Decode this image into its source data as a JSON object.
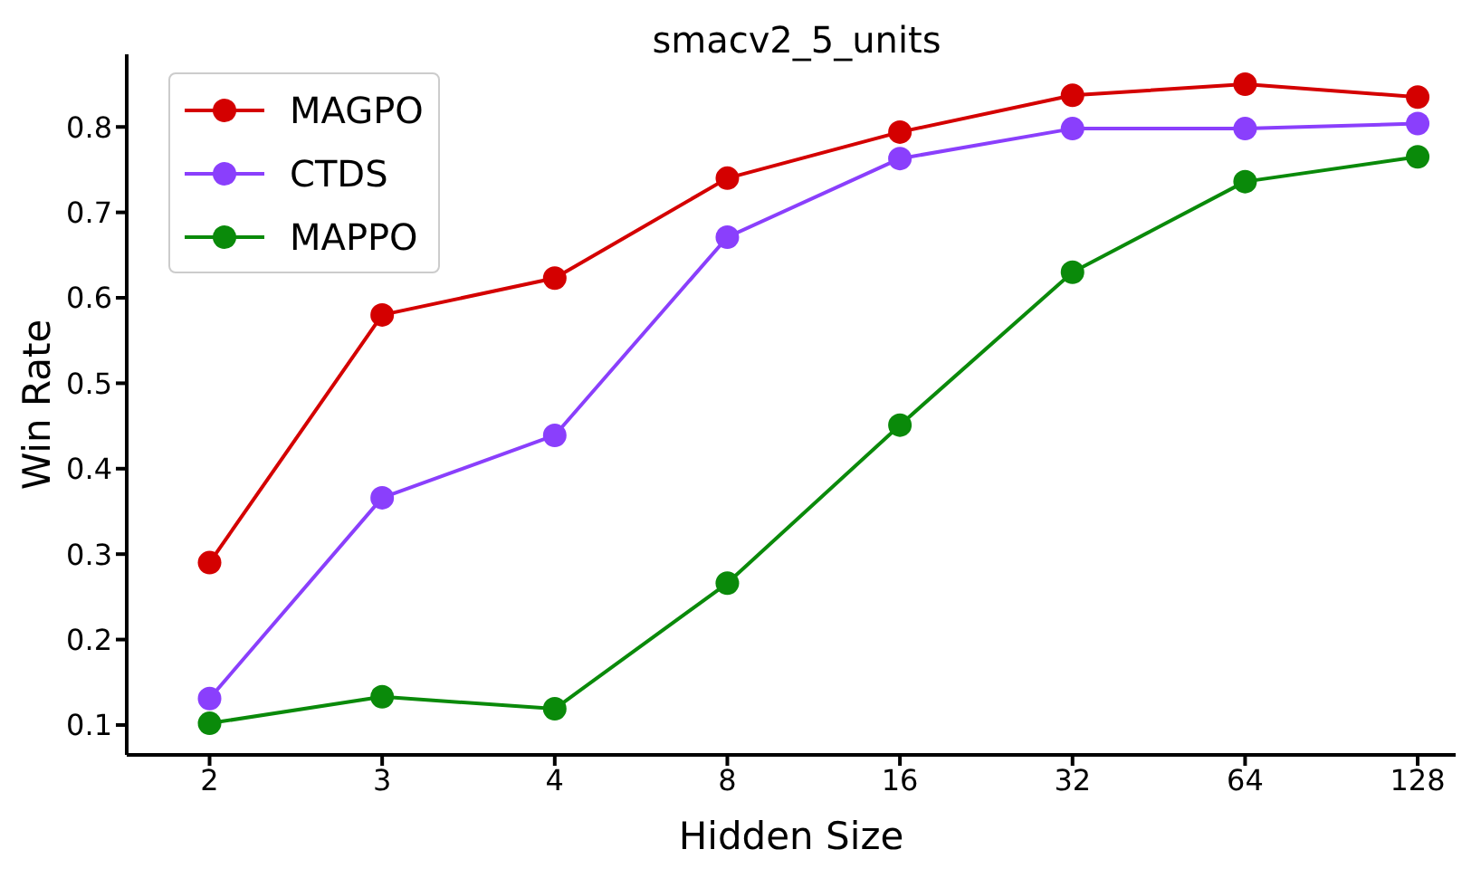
{
  "chart_data": {
    "type": "line",
    "title": "smacv2_5_units",
    "xlabel": "Hidden Size",
    "ylabel": "Win Rate",
    "categories": [
      "2",
      "3",
      "4",
      "8",
      "16",
      "32",
      "64",
      "128"
    ],
    "series": [
      {
        "name": "MAGPO",
        "color": "#d40000",
        "values": [
          0.29,
          0.58,
          0.623,
          0.74,
          0.794,
          0.837,
          0.85,
          0.835
        ]
      },
      {
        "name": "CTDS",
        "color": "#8a3ffc",
        "values": [
          0.131,
          0.366,
          0.439,
          0.671,
          0.763,
          0.798,
          0.798,
          0.804
        ]
      },
      {
        "name": "MAPPO",
        "color": "#0a8a0a",
        "values": [
          0.102,
          0.133,
          0.119,
          0.266,
          0.451,
          0.63,
          0.736,
          0.765
        ]
      }
    ],
    "ylim": [
      0.065,
      0.885
    ],
    "yticks": [
      0.1,
      0.2,
      0.3,
      0.4,
      0.5,
      0.6,
      0.7,
      0.8
    ],
    "grid": false,
    "legend": "top left",
    "marker": "circle",
    "line_style": "solid"
  }
}
